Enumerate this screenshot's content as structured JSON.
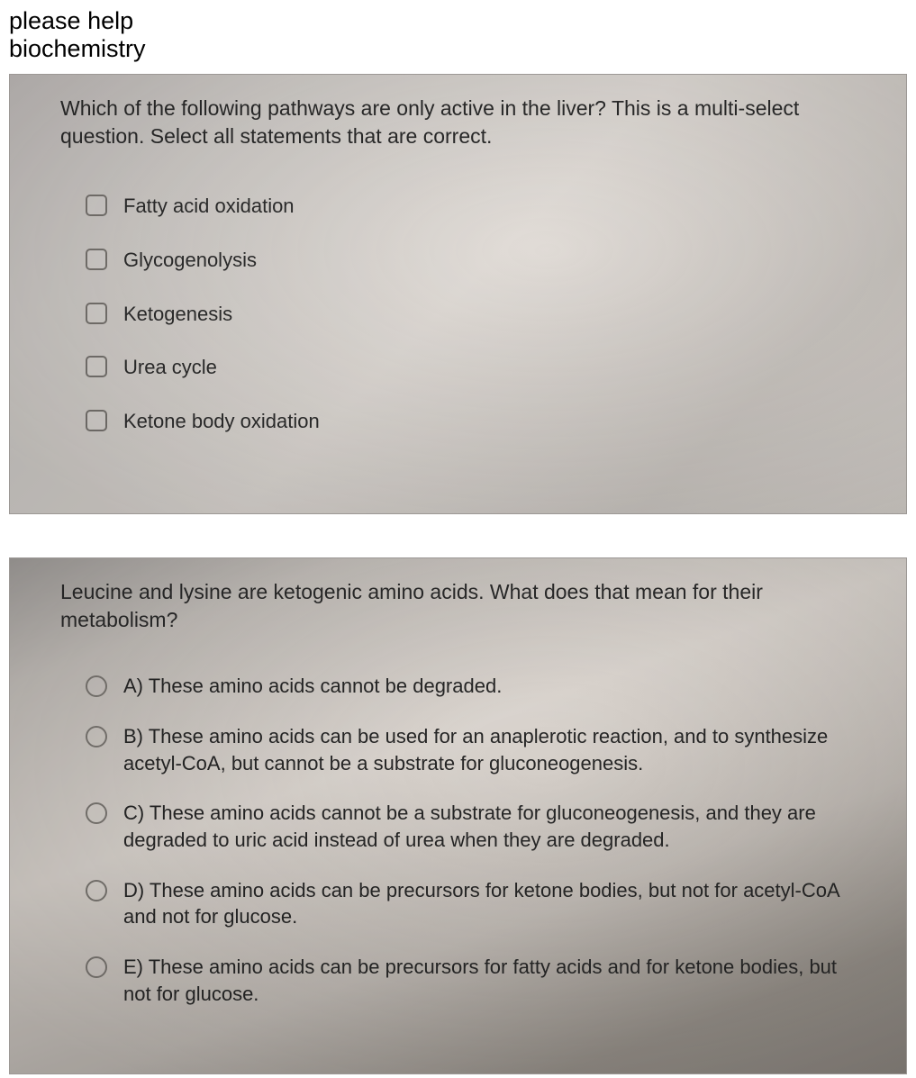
{
  "header": {
    "line1": "please help",
    "line2": "biochemistry"
  },
  "question1": {
    "prompt": "Which of the following pathways are only active in the liver? This is a multi-select question. Select all statements that are correct.",
    "type": "checkbox",
    "options": [
      {
        "label": "Fatty acid oxidation"
      },
      {
        "label": "Glycogenolysis"
      },
      {
        "label": "Ketogenesis"
      },
      {
        "label": "Urea cycle"
      },
      {
        "label": "Ketone body oxidation"
      }
    ]
  },
  "question2": {
    "prompt": "Leucine and lysine are ketogenic amino acids. What does that mean for their metabolism?",
    "type": "radio",
    "options": [
      {
        "label": "A) These amino acids cannot be degraded."
      },
      {
        "label": "B) These amino acids can be used for an anaplerotic reaction, and to synthesize acetyl-CoA, but cannot be a substrate for gluconeogenesis."
      },
      {
        "label": "C) These amino acids cannot be a substrate for gluconeogenesis, and they are degraded to uric acid instead of urea when they are degraded."
      },
      {
        "label": "D) These amino acids can be precursors for ketone bodies, but not for acetyl-CoA and not for glucose."
      },
      {
        "label": "E) These amino acids can be precursors for fatty acids and for ketone bodies, but not for glucose."
      }
    ]
  },
  "styling": {
    "card_border_color": "#9c9895",
    "checkbox_border_color": "#7a7672",
    "radio_border_color": "#7d7974",
    "header_fontsize": 27,
    "prompt_fontsize": 23,
    "option_fontsize": 22,
    "card1_bg_gradient": [
      "#c8c3c1",
      "#d5d1cd",
      "#e2ddd8",
      "#cec9c4",
      "#dad5d0"
    ],
    "card2_bg_gradient": [
      "#a7a3a0",
      "#c8c3be",
      "#ded8d2",
      "#c2bcb6",
      "#958f88",
      "#8b857f"
    ],
    "text_color": "#2a2a2a"
  }
}
